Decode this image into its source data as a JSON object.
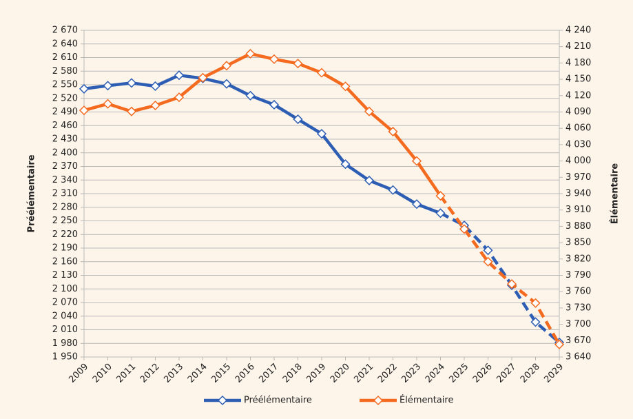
{
  "chart_data": {
    "type": "line",
    "y_label": "Préélémentaire",
    "y2_label": "Élémentaire",
    "categories": [
      "2009",
      "2010",
      "2011",
      "2012",
      "2013",
      "2014",
      "2015",
      "2016",
      "2017",
      "2018",
      "2019",
      "2020",
      "2021",
      "2022",
      "2023",
      "2024",
      "2025",
      "2026",
      "2027",
      "2028",
      "2029"
    ],
    "dashed_from": "2024",
    "legend": "bottom",
    "grid": true,
    "series": [
      {
        "name": "Préélémentaire",
        "color": "#2e5eb4",
        "axis": "y",
        "values": [
          2541,
          2548,
          2554,
          2547,
          2571,
          2564,
          2552,
          2526,
          2506,
          2474,
          2442,
          2375,
          2339,
          2318,
          2287,
          2267,
          2240,
          2185,
          2108,
          2027,
          1982
        ]
      },
      {
        "name": "Élémentaire",
        "color": "#f46a1f",
        "axis": "y2",
        "values": [
          4093,
          4105,
          4091,
          4102,
          4117,
          4153,
          4175,
          4197,
          4187,
          4179,
          4162,
          4137,
          4091,
          4054,
          4000,
          3936,
          3875,
          3815,
          3774,
          3739,
          3663
        ]
      }
    ],
    "ylim": [
      1950,
      2670
    ],
    "yticks": [
      {
        "value": 1950,
        "label": "1 950"
      },
      {
        "value": 1980,
        "label": "1 980"
      },
      {
        "value": 2010,
        "label": "2 010"
      },
      {
        "value": 2040,
        "label": "2 040"
      },
      {
        "value": 2070,
        "label": "2 070"
      },
      {
        "value": 2100,
        "label": "2 100"
      },
      {
        "value": 2130,
        "label": "2 130"
      },
      {
        "value": 2160,
        "label": "2 160"
      },
      {
        "value": 2190,
        "label": "2 190"
      },
      {
        "value": 2220,
        "label": "2 220"
      },
      {
        "value": 2250,
        "label": "2 250"
      },
      {
        "value": 2280,
        "label": "2 280"
      },
      {
        "value": 2310,
        "label": "2 310"
      },
      {
        "value": 2340,
        "label": "2 340"
      },
      {
        "value": 2370,
        "label": "2 370"
      },
      {
        "value": 2400,
        "label": "2 400"
      },
      {
        "value": 2430,
        "label": "2 430"
      },
      {
        "value": 2460,
        "label": "2 460"
      },
      {
        "value": 2490,
        "label": "2 490"
      },
      {
        "value": 2520,
        "label": "2 520"
      },
      {
        "value": 2550,
        "label": "2 550"
      },
      {
        "value": 2580,
        "label": "2 580"
      },
      {
        "value": 2610,
        "label": "2 610"
      },
      {
        "value": 2640,
        "label": "2 640"
      },
      {
        "value": 2670,
        "label": "2 670"
      }
    ],
    "y2lim": [
      3640,
      4240
    ],
    "y2ticks": [
      {
        "value": 3640,
        "label": "3 640"
      },
      {
        "value": 3670,
        "label": "3 670"
      },
      {
        "value": 3700,
        "label": "3 700"
      },
      {
        "value": 3730,
        "label": "3 730"
      },
      {
        "value": 3760,
        "label": "3 760"
      },
      {
        "value": 3790,
        "label": "3 790"
      },
      {
        "value": 3820,
        "label": "3 820"
      },
      {
        "value": 3850,
        "label": "3 850"
      },
      {
        "value": 3880,
        "label": "3 880"
      },
      {
        "value": 3910,
        "label": "3 910"
      },
      {
        "value": 3940,
        "label": "3 940"
      },
      {
        "value": 3970,
        "label": "3 970"
      },
      {
        "value": 4000,
        "label": "4 000"
      },
      {
        "value": 4030,
        "label": "4 030"
      },
      {
        "value": 4060,
        "label": "4 060"
      },
      {
        "value": 4090,
        "label": "4 090"
      },
      {
        "value": 4120,
        "label": "4 120"
      },
      {
        "value": 4150,
        "label": "4 150"
      },
      {
        "value": 4180,
        "label": "4 180"
      },
      {
        "value": 4210,
        "label": "4 210"
      },
      {
        "value": 4240,
        "label": "4 240"
      }
    ]
  }
}
